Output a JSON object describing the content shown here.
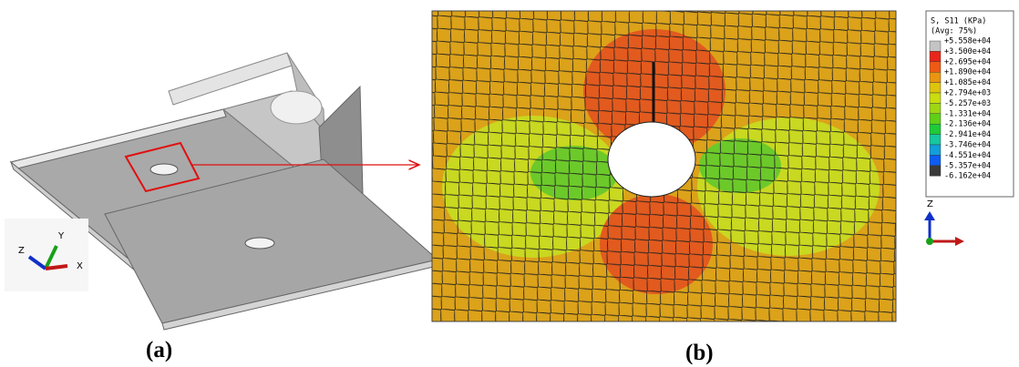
{
  "panel_a": {
    "label": "(a)",
    "triad": {
      "z": "Z",
      "y": "Y",
      "x": "X"
    }
  },
  "panel_b": {
    "label": "(b)",
    "legend": {
      "title_lines": [
        "S, S11 (KPa)",
        "(Avg: 75%)"
      ],
      "values": [
        "+5.558e+04",
        "+3.500e+04",
        "+2.695e+04",
        "+1.890e+04",
        "+1.085e+04",
        "+2.794e+03",
        "-5.257e+03",
        "-1.331e+04",
        "-2.136e+04",
        "-2.941e+04",
        "-3.746e+04",
        "-4.551e+04",
        "-5.357e+04",
        "-6.162e+04"
      ],
      "colors": [
        "#c4c4c4",
        "#e8261a",
        "#ee5a14",
        "#e99512",
        "#dfc40e",
        "#c9dd10",
        "#9ed614",
        "#5fcf18",
        "#1fcb38",
        "#16c7a0",
        "#129ed8",
        "#0e5cf0",
        "#3a3a3a"
      ]
    },
    "triad": {
      "z": "Z"
    }
  }
}
